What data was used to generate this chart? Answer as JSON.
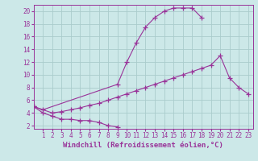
{
  "bg_color": "#cce8e8",
  "grid_color": "#aacccc",
  "line_color": "#993399",
  "marker": "+",
  "markersize": 4,
  "linewidth": 0.8,
  "xlabel": "Windchill (Refroidissement éolien,°C)",
  "xlabel_fontsize": 6.5,
  "tick_fontsize": 5.5,
  "xlim": [
    0,
    23.5
  ],
  "ylim": [
    1.5,
    21
  ],
  "xticks": [
    1,
    2,
    3,
    4,
    5,
    6,
    7,
    8,
    9,
    10,
    11,
    12,
    13,
    14,
    15,
    16,
    17,
    18,
    19,
    20,
    21,
    22,
    23
  ],
  "yticks": [
    2,
    4,
    6,
    8,
    10,
    12,
    14,
    16,
    18,
    20
  ],
  "series_lines": [
    {
      "x": [
        0,
        1,
        2,
        3,
        4,
        5,
        6,
        7,
        8,
        9
      ],
      "y": [
        5,
        4,
        3.5,
        3,
        3,
        2.8,
        2.8,
        2.5,
        2,
        1.8
      ]
    },
    {
      "x": [
        0,
        1,
        9,
        10,
        11,
        12,
        13,
        14,
        15,
        16,
        17,
        18
      ],
      "y": [
        5,
        4.5,
        8.5,
        12,
        15,
        17.5,
        19,
        20,
        20.5,
        20.5,
        20.5,
        19
      ]
    },
    {
      "x": [
        0,
        2,
        3,
        4,
        5,
        6,
        7,
        8,
        9,
        10,
        11,
        12,
        13,
        14,
        15,
        16,
        17,
        18,
        19,
        20,
        21,
        22,
        23
      ],
      "y": [
        5,
        4,
        4.2,
        4.5,
        4.8,
        5.2,
        5.5,
        6,
        6.5,
        7,
        7.5,
        8,
        8.5,
        9,
        9.5,
        10,
        10.5,
        11,
        11.5,
        13,
        9.5,
        8,
        7
      ]
    }
  ]
}
